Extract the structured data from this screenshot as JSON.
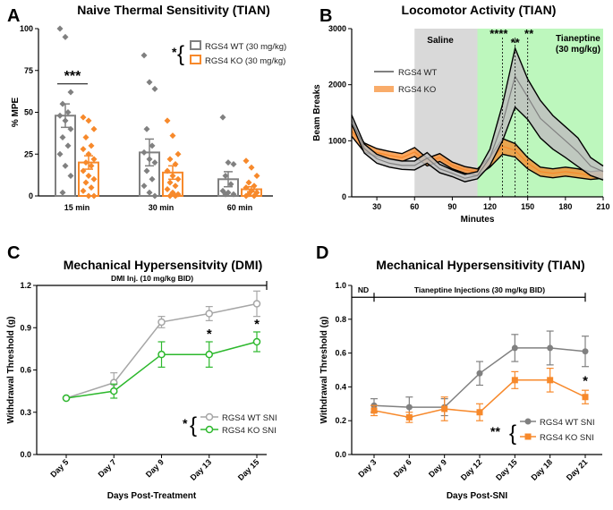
{
  "chart_data": [
    {
      "panel": "A",
      "type": "bar",
      "title": "Naive Thermal Sensitivity (TIAN)",
      "xlabel": "",
      "ylabel": "% MPE",
      "ylim": [
        0,
        100
      ],
      "yticks": [
        "0",
        "25",
        "50",
        "75",
        "100"
      ],
      "categories": [
        "15 min",
        "30 min",
        "60 min"
      ],
      "series": [
        {
          "name": "RGS4 WT (30 mg/kg)",
          "color": "#808080",
          "values": [
            48,
            26,
            10
          ],
          "sem": [
            7,
            8,
            4.5
          ],
          "points": [
            [
              100,
              95,
              62,
              55,
              50,
              48,
              45,
              40,
              35,
              30,
              25,
              18,
              12,
              2
            ],
            [
              84,
              68,
              64,
              40,
              30,
              26,
              22,
              20,
              15,
              10,
              6,
              2,
              0
            ],
            [
              47,
              20,
              19,
              12,
              7,
              3,
              2,
              1,
              1
            ]
          ]
        },
        {
          "name": "RGS4 KO (30 mg/kg)",
          "color": "#F7892B",
          "values": [
            20,
            14,
            4
          ],
          "sem": [
            4,
            4,
            1.5
          ],
          "points": [
            [
              47,
              45,
              40,
              35,
              30,
              28,
              25,
              22,
              20,
              18,
              15,
              12,
              10,
              8,
              5,
              3,
              0,
              0
            ],
            [
              45,
              36,
              25,
              22,
              19,
              15,
              12,
              10,
              8,
              6,
              4,
              2,
              1,
              0,
              0
            ],
            [
              21,
              17,
              12,
              8,
              6,
              5,
              3,
              2,
              1,
              0,
              0
            ]
          ]
        }
      ],
      "annotations": {
        "comparison": "***",
        "legend_sig": "*"
      }
    },
    {
      "panel": "B",
      "type": "line",
      "title": "Locomotor Activity (TIAN)",
      "xlabel": "Minutes",
      "ylabel": "Beam Breaks",
      "xlim": [
        10,
        210
      ],
      "ylim": [
        0,
        3000
      ],
      "xticks": [
        "30",
        "60",
        "90",
        "120",
        "150",
        "180",
        "210"
      ],
      "yticks": [
        "0",
        "1000",
        "2000",
        "3000"
      ],
      "regions": [
        {
          "label": "Saline",
          "x_start": 60,
          "x_end": 110,
          "color": "#D9D9D9"
        },
        {
          "label": "Tianeptine (30 mg/kg)",
          "x_start": 110,
          "x_end": 210,
          "color": "#BDF7BD"
        }
      ],
      "x": [
        10,
        20,
        30,
        40,
        50,
        60,
        70,
        80,
        90,
        100,
        110,
        120,
        130,
        140,
        150,
        160,
        170,
        180,
        190,
        200,
        210
      ],
      "series": [
        {
          "name": "RGS4 WT",
          "color": "#808080",
          "fill": "#BFBFBF",
          "mean": [
            1380,
            860,
            680,
            600,
            560,
            560,
            690,
            500,
            420,
            330,
            380,
            700,
            1320,
            2150,
            1780,
            1400,
            1200,
            1000,
            800,
            550,
            450
          ],
          "lower": [
            1300,
            780,
            600,
            530,
            490,
            480,
            600,
            430,
            360,
            270,
            320,
            560,
            1000,
            1600,
            1380,
            1050,
            850,
            700,
            540,
            380,
            300
          ],
          "upper": [
            1460,
            940,
            760,
            680,
            640,
            640,
            790,
            580,
            480,
            400,
            450,
            850,
            1650,
            2650,
            2100,
            1720,
            1450,
            1250,
            1050,
            700,
            550
          ]
        },
        {
          "name": "RGS4 KO",
          "color": "#F7892B",
          "fill": "#F7892B",
          "mean": [
            1180,
            880,
            790,
            740,
            700,
            800,
            620,
            700,
            560,
            480,
            440,
            620,
            900,
            830,
            600,
            450,
            420,
            450,
            420,
            380,
            400
          ],
          "lower": [
            1080,
            800,
            720,
            670,
            630,
            720,
            550,
            630,
            500,
            420,
            380,
            530,
            760,
            710,
            500,
            370,
            340,
            370,
            340,
            310,
            330
          ],
          "upper": [
            1280,
            960,
            860,
            810,
            770,
            880,
            690,
            770,
            620,
            540,
            500,
            710,
            1040,
            950,
            700,
            530,
            500,
            530,
            500,
            450,
            470
          ]
        }
      ],
      "annotations": {
        "sig_left": "****",
        "sig_mid": "**",
        "sig_right": "**"
      }
    },
    {
      "panel": "C",
      "type": "line",
      "title": "Mechanical Hypersensitvity (DMI)",
      "xlabel": "Days Post-Treatment",
      "ylabel": "Withdrawal Threshold (g)",
      "ylim": [
        0,
        1.2
      ],
      "yticks": [
        "0.0",
        "0.3",
        "0.6",
        "0.9",
        "1.2"
      ],
      "categories": [
        "Day 5",
        "Day 7",
        "Day 9",
        "Day 13",
        "Day 15"
      ],
      "bar_label": "DMI Inj. (10 mg/kg BID)",
      "series": [
        {
          "name": "RGS4 WT SNI",
          "color": "#A6A6A6",
          "values": [
            0.4,
            0.51,
            0.94,
            1.0,
            1.07
          ],
          "err": [
            0.0,
            0.07,
            0.04,
            0.05,
            0.09
          ]
        },
        {
          "name": "RGS4 KO SNI",
          "color": "#2DB82D",
          "values": [
            0.4,
            0.45,
            0.71,
            0.71,
            0.8
          ],
          "err": [
            0.0,
            0.05,
            0.09,
            0.09,
            0.07
          ]
        }
      ],
      "annotations": {
        "day13": "*",
        "day15": "*",
        "legend_sig": "*"
      }
    },
    {
      "panel": "D",
      "type": "line",
      "title": "Mechanical Hypersensitivity (TIAN)",
      "xlabel": "Days Post-SNI",
      "ylabel": "Withdrawal Threshold (g)",
      "ylim": [
        0,
        1.0
      ],
      "yticks": [
        "0.0",
        "0.2",
        "0.4",
        "0.6",
        "0.8",
        "1.0"
      ],
      "categories": [
        "Day 3",
        "Day 6",
        "Day 9",
        "Day 12",
        "Day 15",
        "Day 18",
        "Day 21"
      ],
      "nd_label": "ND",
      "bar_label": "Tianeptine Injections (30 mg/kg BID)",
      "series": [
        {
          "name": "RGS4 WT SNI",
          "color": "#808080",
          "values": [
            0.29,
            0.28,
            0.28,
            0.48,
            0.63,
            0.63,
            0.61
          ],
          "err": [
            0.04,
            0.06,
            0.05,
            0.07,
            0.08,
            0.1,
            0.09
          ]
        },
        {
          "name": "RGS4 KO SNI",
          "color": "#F7892B",
          "values": [
            0.26,
            0.22,
            0.27,
            0.25,
            0.44,
            0.44,
            0.34
          ],
          "err": [
            0.03,
            0.03,
            0.07,
            0.05,
            0.05,
            0.07,
            0.04
          ]
        }
      ],
      "annotations": {
        "day21": "*",
        "legend_sig": "**"
      }
    }
  ]
}
